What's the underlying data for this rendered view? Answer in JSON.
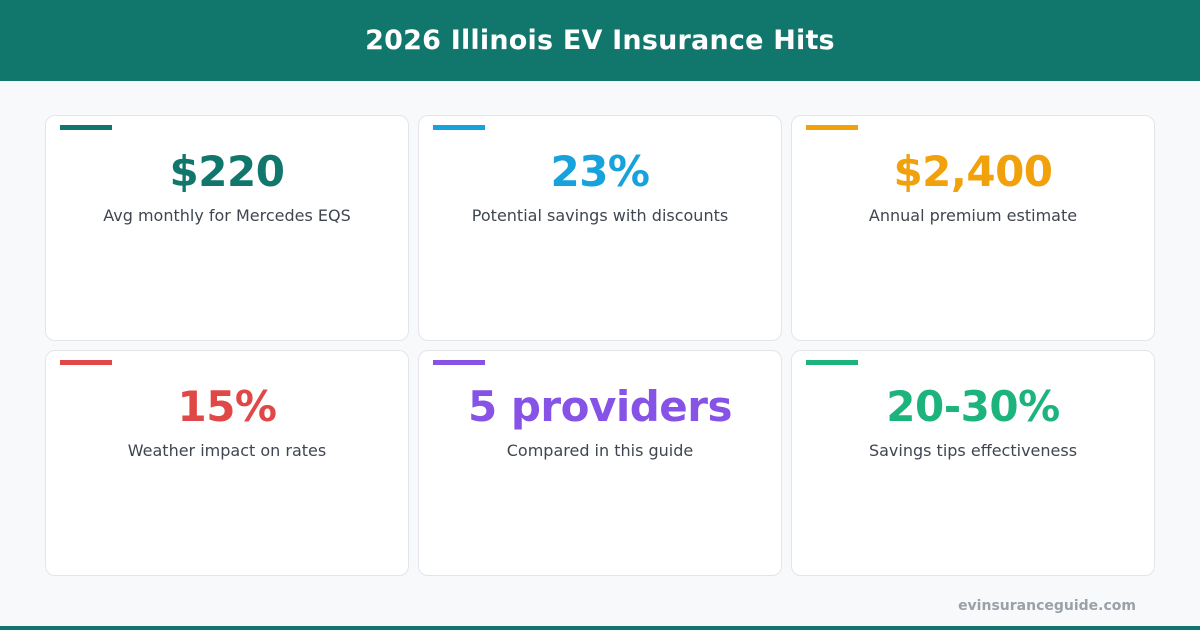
{
  "header": {
    "title": "2026 Illinois EV Insurance Hits"
  },
  "cards": [
    {
      "value": "$220",
      "label": "Avg monthly for Mercedes EQS",
      "color": "#11766c"
    },
    {
      "value": "23%",
      "label": "Potential savings with discounts",
      "color": "#17a2dc"
    },
    {
      "value": "$2,400",
      "label": "Annual premium estimate",
      "color": "#f0a10c"
    },
    {
      "value": "15%",
      "label": "Weather impact on rates",
      "color": "#e04848"
    },
    {
      "value": "5 providers",
      "label": "Compared in this guide",
      "color": "#8653e6"
    },
    {
      "value": "20-30%",
      "label": "Savings tips effectiveness",
      "color": "#1cb37c"
    }
  ],
  "footer": {
    "domain": "evinsuranceguide.com"
  },
  "colors": {
    "brand": "#11766c"
  }
}
